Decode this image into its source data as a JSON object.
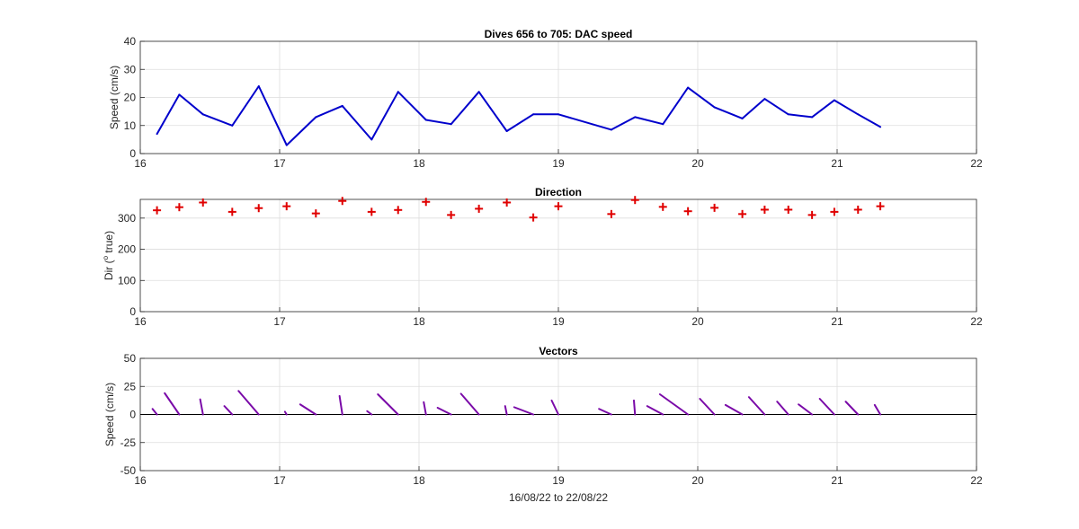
{
  "colors": {
    "speed_line": "#0000cc",
    "dir_marker": "#e00000",
    "vector": "#7a0aa8",
    "grid": "#dddddd",
    "axes": "#262626"
  },
  "chart_data": [
    {
      "type": "line",
      "title": "Dives 656 to 705: DAC speed",
      "xlabel": "",
      "ylabel": "Speed (cm/s)",
      "xlim": [
        16,
        22
      ],
      "ylim": [
        0,
        40
      ],
      "xticks": [
        "16",
        "17",
        "18",
        "19",
        "20",
        "21",
        "22"
      ],
      "yticks": [
        "0",
        "10",
        "20",
        "30",
        "40"
      ],
      "grid": true,
      "series": [
        {
          "x": [
            16.12,
            16.28,
            16.45,
            16.66,
            16.85,
            17.05,
            17.26,
            17.45,
            17.66,
            17.85,
            18.05,
            18.23,
            18.43,
            18.63,
            18.82,
            19.0,
            19.38,
            19.55,
            19.75,
            19.93,
            20.12,
            20.32,
            20.48,
            20.65,
            20.82,
            20.98,
            21.15,
            21.31
          ],
          "y": [
            7,
            21,
            14,
            10,
            24,
            3,
            13,
            17,
            5,
            22,
            12,
            10.5,
            22,
            8,
            14,
            14,
            8.5,
            13,
            10.5,
            23.5,
            16.5,
            12.5,
            19.5,
            14,
            13,
            19,
            14,
            9.5
          ]
        }
      ]
    },
    {
      "type": "scatter",
      "title": "Direction",
      "xlabel": "",
      "ylabel_prefix": "Dir (",
      "ylabel_sup": "o",
      "ylabel_suffix": " true)",
      "xlim": [
        16,
        22
      ],
      "ylim": [
        0,
        360
      ],
      "xticks": [
        "16",
        "17",
        "18",
        "19",
        "20",
        "21",
        "22"
      ],
      "yticks": [
        "0",
        "100",
        "200",
        "300"
      ],
      "ytick_values": [
        0,
        100,
        200,
        300
      ],
      "grid": true,
      "marker": "+",
      "series": [
        {
          "x": [
            16.12,
            16.28,
            16.45,
            16.66,
            16.85,
            17.05,
            17.26,
            17.45,
            17.66,
            17.85,
            18.05,
            18.23,
            18.43,
            18.63,
            18.82,
            19.0,
            19.38,
            19.55,
            19.75,
            19.93,
            20.12,
            20.32,
            20.48,
            20.65,
            20.82,
            20.98,
            21.15,
            21.31
          ],
          "y": [
            325,
            335,
            350,
            320,
            332,
            338,
            315,
            355,
            320,
            326,
            352,
            310,
            330,
            350,
            302,
            338,
            313,
            358,
            336,
            322,
            333,
            313,
            327,
            327,
            310,
            320,
            327,
            338
          ]
        }
      ]
    },
    {
      "type": "vector",
      "title": "Vectors",
      "xlabel": "16/08/22 to 22/08/22",
      "ylabel": "Speed (cm/s)",
      "xlim": [
        16,
        22
      ],
      "ylim": [
        -50,
        50
      ],
      "xticks": [
        "16",
        "17",
        "18",
        "19",
        "20",
        "21",
        "22"
      ],
      "yticks": [
        "-50",
        "-25",
        "0",
        "25",
        "50"
      ],
      "ytick_values": [
        -50,
        -25,
        0,
        25,
        50
      ],
      "grid": true,
      "vectors": {
        "x": [
          16.12,
          16.28,
          16.45,
          16.66,
          16.85,
          17.05,
          17.26,
          17.45,
          17.66,
          17.85,
          18.05,
          18.23,
          18.43,
          18.63,
          18.82,
          19.0,
          19.38,
          19.55,
          19.75,
          19.93,
          20.12,
          20.32,
          20.48,
          20.65,
          20.82,
          20.98,
          21.15,
          21.31
        ],
        "u": [
          -4,
          -13,
          -2.5,
          -7,
          -18,
          -1.5,
          -14,
          -2.5,
          -4,
          -18,
          -2,
          -12,
          -16,
          -1.5,
          -17,
          -6,
          -11,
          -1,
          -14,
          -25,
          -13,
          -15,
          -14,
          -10,
          -12,
          -13,
          -11,
          -5
        ],
        "v": [
          5,
          19,
          13.5,
          7.5,
          21,
          2.5,
          9,
          16.5,
          3,
          18,
          11,
          6,
          18.5,
          7.5,
          6.5,
          12.5,
          5,
          12.5,
          7.5,
          18,
          14,
          8.5,
          15.5,
          11.5,
          9,
          14,
          11.5,
          8.5
        ]
      }
    }
  ]
}
